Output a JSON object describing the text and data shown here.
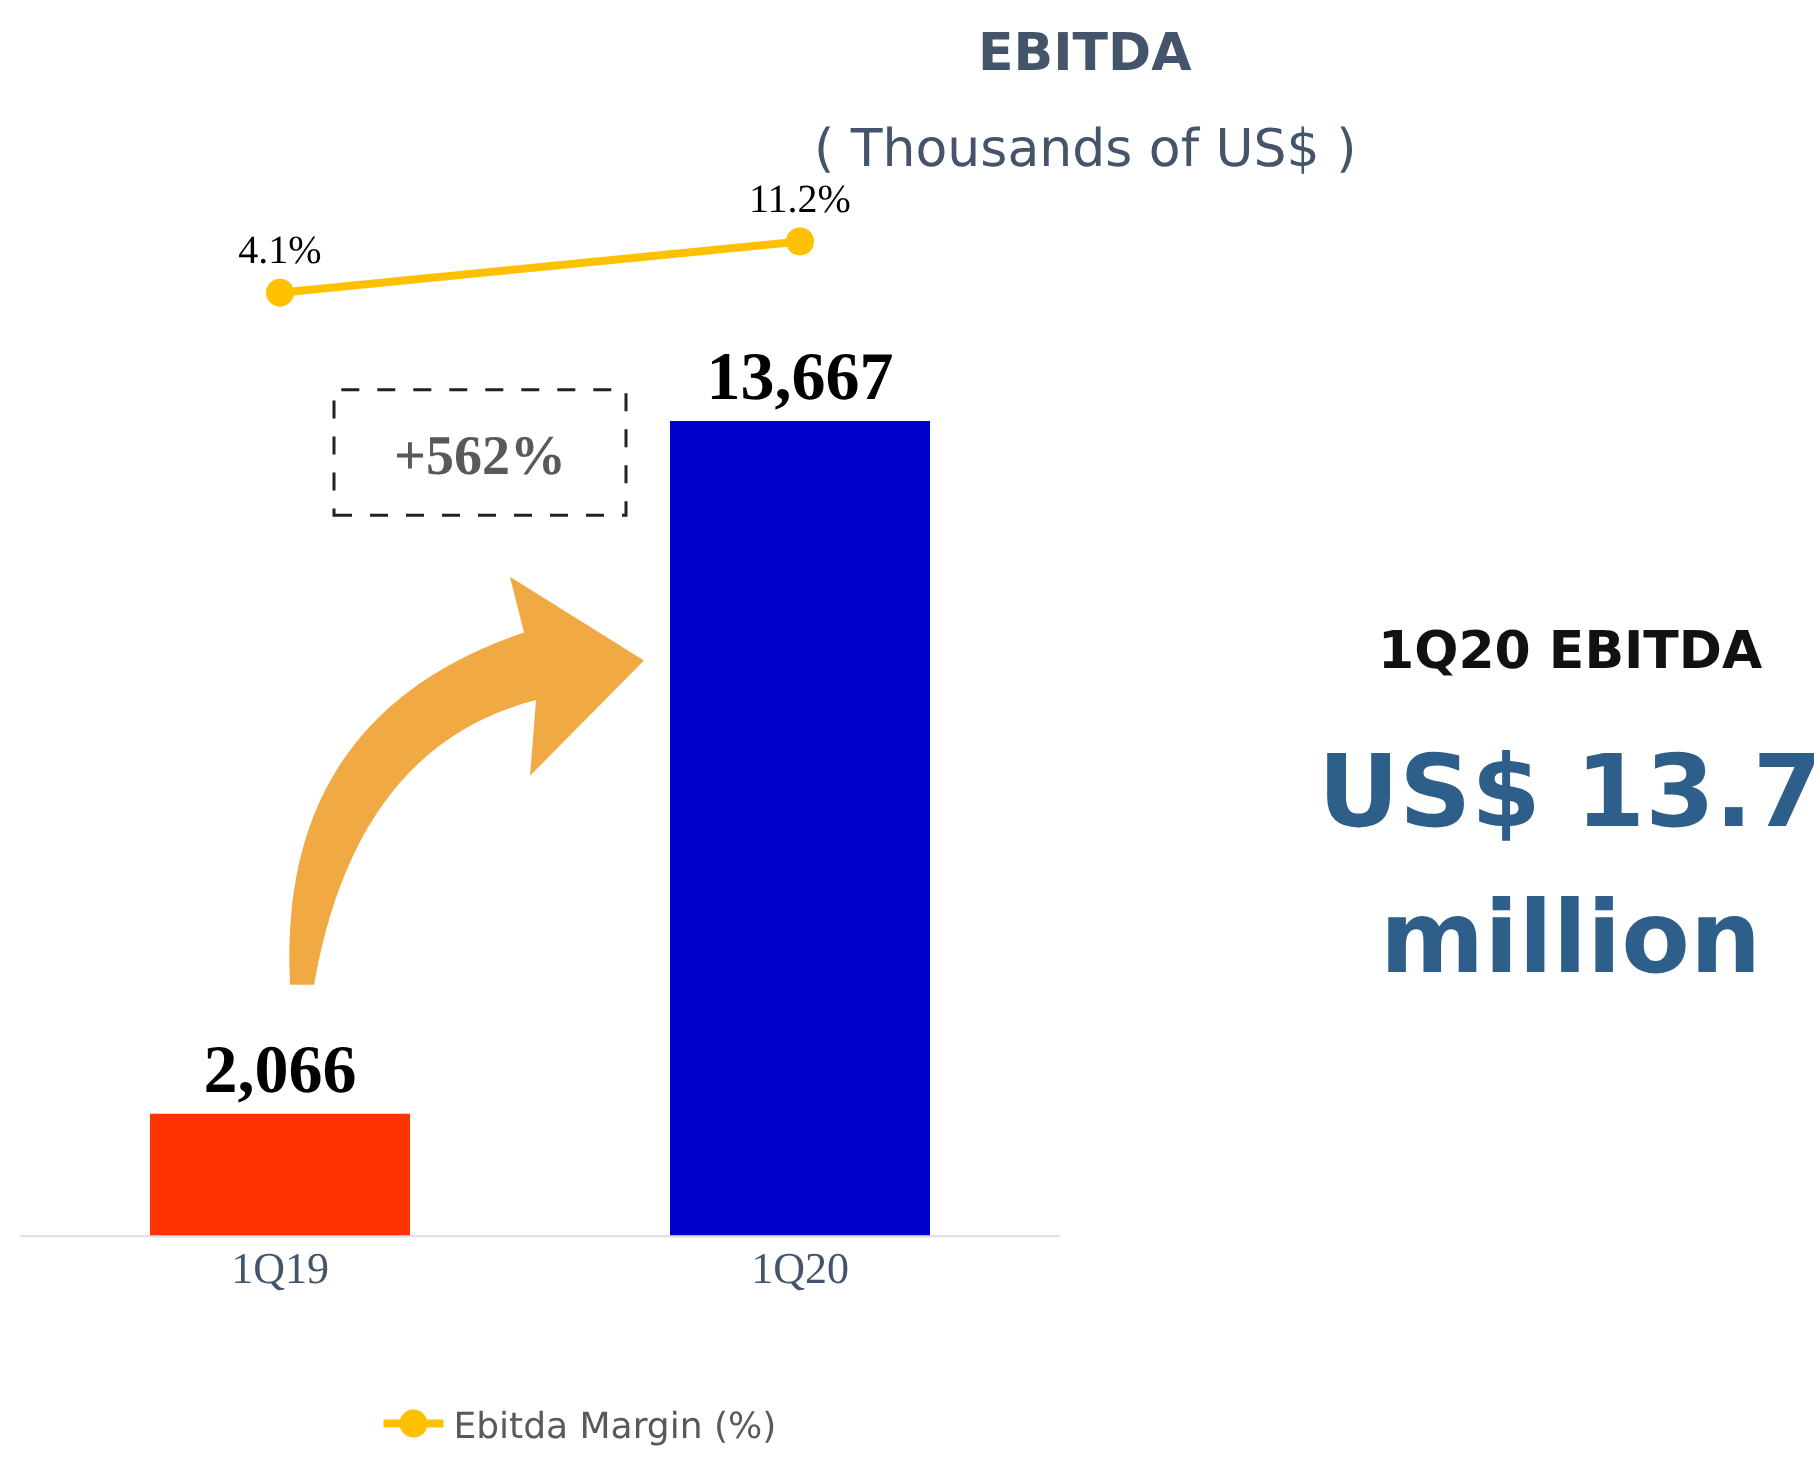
{
  "chart_data": [
    {
      "type": "line",
      "title": "EBITDA",
      "subtitle": "( Thousands of US$ )",
      "categories": [
        "1Q19",
        "1Q20"
      ],
      "tick_labels": false,
      "marker": "circle",
      "line_style": "solid",
      "legend": "bottom",
      "series": [
        {
          "name": "Ebitda Margin (%)",
          "color": "#ffc000",
          "values": [
            4.1,
            11.2
          ],
          "value_labels": [
            "4.1%",
            "11.2%"
          ]
        }
      ]
    },
    {
      "type": "bar",
      "categories": [
        "1Q19",
        "1Q20"
      ],
      "values": [
        2066,
        13667
      ],
      "colors": [
        "#ff3300",
        "#0000cc"
      ],
      "value_labels": [
        "2,066",
        "13,667"
      ],
      "tick_labels": "x",
      "annotations": [
        "+562%"
      ]
    },
    {
      "type": "other",
      "title": "1Q20 EBITDA",
      "annotations": [
        "US$ 13.7 million"
      ]
    }
  ]
}
